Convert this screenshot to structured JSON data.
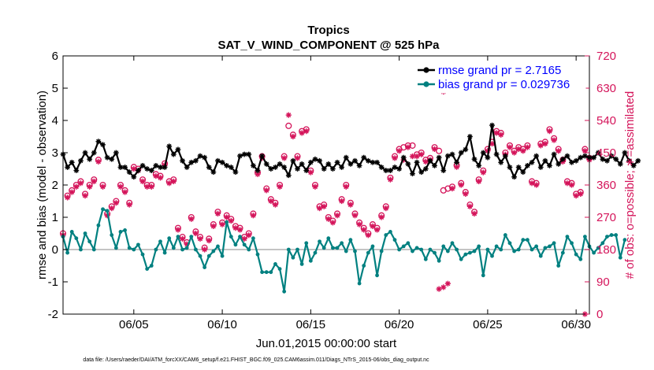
{
  "chart_data": {
    "type": "line",
    "title": "Tropics",
    "subtitle": "SAT_V_WIND_COMPONENT @ 525 hPa",
    "xlabel": "Jun.01,2015 00:00:00 start",
    "ylabel_left": "rmse and bias (model - observation)",
    "ylabel_right": "# of obs: o=possible; ∗=assimilated",
    "footnote": "data file: /Users/raeder/DAI/ATM_forcXX/CAM6_setup/f.e21.FHIST_BGC.f09_025.CAM6assim.011/Diags_NTrS_2015-06/obs_diag_output.nc",
    "xlim": [
      1.0,
      30.75
    ],
    "ylim_left": [
      -2,
      6
    ],
    "ylim_right": [
      0,
      720
    ],
    "x_ticks": [
      5,
      10,
      15,
      20,
      25,
      30
    ],
    "x_tick_labels": [
      "06/05",
      "06/10",
      "06/15",
      "06/20",
      "06/25",
      "06/30"
    ],
    "y_ticks_left": [
      -2,
      -1,
      0,
      1,
      2,
      3,
      4,
      5,
      6
    ],
    "y_ticks_right": [
      0,
      90,
      180,
      270,
      360,
      450,
      540,
      630,
      720
    ],
    "zero_line": true,
    "legend": [
      {
        "label": "rmse grand pr = 2.7165",
        "color": "#000000"
      },
      {
        "label": "bias grand pr = 0.029736",
        "color": "#008080"
      }
    ],
    "colors": {
      "rmse": "#000000",
      "bias": "#008080",
      "obs": "#d4145a",
      "zero_line": "#b0b0b0"
    },
    "x_start": 1.0,
    "x_step": 0.25,
    "series": [
      {
        "name": "rmse",
        "axis": "left",
        "values": [
          2.95,
          2.55,
          2.7,
          2.45,
          2.75,
          3.0,
          2.8,
          3.0,
          3.35,
          3.25,
          2.85,
          2.8,
          3.0,
          2.55,
          2.55,
          2.4,
          2.25,
          2.45,
          2.6,
          2.5,
          2.45,
          2.6,
          2.55,
          2.55,
          3.2,
          2.95,
          3.1,
          2.75,
          2.55,
          2.7,
          2.75,
          2.9,
          2.85,
          2.55,
          2.4,
          2.75,
          2.7,
          2.6,
          2.55,
          2.4,
          2.9,
          2.95,
          2.95,
          2.6,
          2.45,
          2.9,
          2.65,
          2.5,
          2.55,
          2.65,
          2.55,
          2.3,
          2.75,
          2.5,
          2.65,
          2.45,
          2.7,
          2.8,
          2.75,
          2.5,
          2.65,
          2.5,
          2.7,
          2.55,
          2.85,
          2.65,
          2.75,
          2.6,
          2.85,
          2.75,
          2.7,
          2.7,
          2.55,
          2.45,
          2.45,
          2.55,
          2.5,
          2.85,
          2.65,
          2.35,
          2.7,
          2.4,
          2.5,
          2.75,
          2.6,
          2.85,
          2.45,
          2.9,
          2.95,
          2.7,
          3.0,
          3.1,
          3.5,
          2.8,
          2.6,
          3.0,
          2.85,
          3.85,
          2.95,
          2.7,
          2.9,
          2.55,
          2.25,
          2.55,
          2.4,
          2.6,
          2.7,
          2.9,
          2.55,
          2.75,
          2.6,
          2.95,
          2.65,
          2.8,
          2.9,
          2.7,
          2.75,
          2.85,
          2.9,
          2.85,
          2.85,
          3.0,
          2.8,
          2.75,
          2.9,
          2.8,
          2.65,
          3.0,
          2.75,
          2.6,
          2.75
        ]
      },
      {
        "name": "bias",
        "axis": "left",
        "values": [
          0.4,
          -0.1,
          0.55,
          0.35,
          0.0,
          0.5,
          0.25,
          0.0,
          0.75,
          1.25,
          1.2,
          0.45,
          0.05,
          0.55,
          0.6,
          0.05,
          0.0,
          0.15,
          -0.15,
          -0.6,
          -0.5,
          0.0,
          0.25,
          -0.1,
          0.35,
          0.05,
          0.4,
          0.0,
          0.05,
          0.4,
          0.0,
          -0.2,
          -0.55,
          -0.2,
          -0.05,
          0.1,
          -0.2,
          0.85,
          0.4,
          0.15,
          0.4,
          0.15,
          0.0,
          0.35,
          -0.15,
          -0.7,
          -0.7,
          -0.7,
          -0.45,
          -0.6,
          -1.3,
          0.0,
          -0.25,
          0.0,
          -0.45,
          0.2,
          -0.35,
          -0.1,
          0.25,
          0.05,
          0.35,
          0.05,
          0.05,
          0.2,
          -0.05,
          0.3,
          -0.05,
          -1.05,
          -0.5,
          -0.1,
          0.1,
          -0.8,
          -0.05,
          0.45,
          0.55,
          0.3,
          0.0,
          0.1,
          0.2,
          -0.05,
          0.05,
          0.0,
          -0.3,
          0.0,
          -0.1,
          -0.35,
          0.1,
          -0.05,
          0.2,
          0.0,
          -0.3,
          -0.15,
          -0.1,
          -0.05,
          0.1,
          -0.8,
          0.0,
          -0.2,
          0.1,
          0.0,
          0.45,
          0.2,
          -0.05,
          0.0,
          0.3,
          0.3,
          0.0,
          0.1,
          -0.2,
          0.05,
          0.1,
          0.2,
          -0.5,
          -0.1,
          0.4,
          0.2,
          -0.15,
          -0.3,
          0.4,
          0.1,
          -0.1,
          0.05,
          0.2,
          0.4,
          0.45,
          0.45,
          -0.25,
          0.3
        ]
      }
    ],
    "obs_possible": [
      {
        "x": 1.0,
        "y": 225
      },
      {
        "x": 1.25,
        "y": 330
      },
      {
        "x": 1.5,
        "y": 345
      },
      {
        "x": 1.75,
        "y": 360
      },
      {
        "x": 2.0,
        "y": 370
      },
      {
        "x": 2.25,
        "y": 335
      },
      {
        "x": 2.5,
        "y": 360
      },
      {
        "x": 2.75,
        "y": 375
      },
      {
        "x": 3.0,
        "y": 430
      },
      {
        "x": 3.25,
        "y": 360
      },
      {
        "x": 3.5,
        "y": 280
      },
      {
        "x": 3.75,
        "y": 300
      },
      {
        "x": 4.0,
        "y": 315
      },
      {
        "x": 4.25,
        "y": 360
      },
      {
        "x": 4.5,
        "y": 345
      },
      {
        "x": 4.75,
        "y": 310
      },
      {
        "x": 5.0,
        "y": 410
      },
      {
        "x": 5.25,
        "y": 405
      },
      {
        "x": 5.5,
        "y": 375
      },
      {
        "x": 5.75,
        "y": 360
      },
      {
        "x": 6.0,
        "y": 360
      },
      {
        "x": 6.25,
        "y": 390
      },
      {
        "x": 6.5,
        "y": 385
      },
      {
        "x": 6.75,
        "y": 420
      },
      {
        "x": 7.0,
        "y": 370
      },
      {
        "x": 7.25,
        "y": 375
      },
      {
        "x": 7.5,
        "y": 240
      },
      {
        "x": 7.75,
        "y": 215
      },
      {
        "x": 8.0,
        "y": 200
      },
      {
        "x": 8.25,
        "y": 270
      },
      {
        "x": 8.5,
        "y": 230
      },
      {
        "x": 8.75,
        "y": 215
      },
      {
        "x": 9.0,
        "y": 185
      },
      {
        "x": 9.25,
        "y": 210
      },
      {
        "x": 9.5,
        "y": 250
      },
      {
        "x": 9.75,
        "y": 285
      },
      {
        "x": 10.0,
        "y": 255
      },
      {
        "x": 10.25,
        "y": 275
      },
      {
        "x": 10.5,
        "y": 265
      },
      {
        "x": 10.75,
        "y": 245
      },
      {
        "x": 11.0,
        "y": 240
      },
      {
        "x": 11.25,
        "y": 215
      },
      {
        "x": 11.5,
        "y": 225
      },
      {
        "x": 11.75,
        "y": 280
      },
      {
        "x": 12.0,
        "y": 395
      },
      {
        "x": 12.25,
        "y": 440
      },
      {
        "x": 12.5,
        "y": 350
      },
      {
        "x": 12.75,
        "y": 320
      },
      {
        "x": 13.0,
        "y": 310
      },
      {
        "x": 13.25,
        "y": 360
      },
      {
        "x": 13.5,
        "y": 440
      },
      {
        "x": 13.75,
        "y": 525
      },
      {
        "x": 14.0,
        "y": 500
      },
      {
        "x": 14.25,
        "y": 440
      },
      {
        "x": 14.5,
        "y": 510
      },
      {
        "x": 14.75,
        "y": 515
      },
      {
        "x": 15.0,
        "y": 400
      },
      {
        "x": 15.25,
        "y": 360
      },
      {
        "x": 15.5,
        "y": 300
      },
      {
        "x": 15.75,
        "y": 305
      },
      {
        "x": 16.0,
        "y": 270
      },
      {
        "x": 16.25,
        "y": 260
      },
      {
        "x": 16.5,
        "y": 280
      },
      {
        "x": 16.75,
        "y": 320
      },
      {
        "x": 17.0,
        "y": 360
      },
      {
        "x": 17.25,
        "y": 310
      },
      {
        "x": 17.5,
        "y": 280
      },
      {
        "x": 17.75,
        "y": 255
      },
      {
        "x": 18.0,
        "y": 240
      },
      {
        "x": 18.25,
        "y": 225
      },
      {
        "x": 18.5,
        "y": 250
      },
      {
        "x": 18.75,
        "y": 240
      },
      {
        "x": 19.0,
        "y": 275
      },
      {
        "x": 19.25,
        "y": 300
      },
      {
        "x": 19.5,
        "y": 380
      },
      {
        "x": 19.75,
        "y": 440
      },
      {
        "x": 20.0,
        "y": 460
      },
      {
        "x": 20.25,
        "y": 465
      },
      {
        "x": 20.5,
        "y": 470
      },
      {
        "x": 20.75,
        "y": 470
      },
      {
        "x": 21.0,
        "y": 445
      },
      {
        "x": 21.25,
        "y": 450
      },
      {
        "x": 21.5,
        "y": 430
      },
      {
        "x": 21.75,
        "y": 435
      },
      {
        "x": 22.0,
        "y": 465
      },
      {
        "x": 22.25,
        "y": 455
      },
      {
        "x": 22.5,
        "y": 345
      },
      {
        "x": 22.75,
        "y": 350
      },
      {
        "x": 23.0,
        "y": 355
      },
      {
        "x": 23.25,
        "y": 415
      },
      {
        "x": 23.5,
        "y": 365
      },
      {
        "x": 23.75,
        "y": 340
      },
      {
        "x": 24.0,
        "y": 305
      },
      {
        "x": 24.25,
        "y": 285
      },
      {
        "x": 24.5,
        "y": 375
      },
      {
        "x": 24.75,
        "y": 400
      },
      {
        "x": 25.0,
        "y": 460
      },
      {
        "x": 25.25,
        "y": 480
      },
      {
        "x": 25.5,
        "y": 510
      },
      {
        "x": 25.75,
        "y": 505
      },
      {
        "x": 26.0,
        "y": 450
      },
      {
        "x": 26.25,
        "y": 470
      },
      {
        "x": 26.5,
        "y": 455
      },
      {
        "x": 26.75,
        "y": 465
      },
      {
        "x": 27.0,
        "y": 460
      },
      {
        "x": 27.25,
        "y": 470
      },
      {
        "x": 27.5,
        "y": 370
      },
      {
        "x": 27.75,
        "y": 365
      },
      {
        "x": 28.0,
        "y": 475
      },
      {
        "x": 28.25,
        "y": 480
      },
      {
        "x": 28.5,
        "y": 515
      },
      {
        "x": 28.75,
        "y": 490
      },
      {
        "x": 29.0,
        "y": 460
      },
      {
        "x": 29.25,
        "y": 430
      },
      {
        "x": 29.5,
        "y": 370
      },
      {
        "x": 29.75,
        "y": 365
      },
      {
        "x": 30.0,
        "y": 335
      },
      {
        "x": 30.25,
        "y": 340
      },
      {
        "x": 30.5,
        "y": 460
      },
      {
        "x": 30.75,
        "y": 435
      }
    ],
    "obs_assimilated": [
      {
        "x": 1.0,
        "y": 220
      },
      {
        "x": 1.25,
        "y": 325
      },
      {
        "x": 1.5,
        "y": 340
      },
      {
        "x": 1.75,
        "y": 355
      },
      {
        "x": 2.0,
        "y": 365
      },
      {
        "x": 2.25,
        "y": 330
      },
      {
        "x": 2.5,
        "y": 355
      },
      {
        "x": 2.75,
        "y": 370
      },
      {
        "x": 3.0,
        "y": 425
      },
      {
        "x": 3.25,
        "y": 355
      },
      {
        "x": 3.5,
        "y": 275
      },
      {
        "x": 3.75,
        "y": 295
      },
      {
        "x": 4.0,
        "y": 310
      },
      {
        "x": 4.25,
        "y": 355
      },
      {
        "x": 4.5,
        "y": 340
      },
      {
        "x": 4.75,
        "y": 305
      },
      {
        "x": 5.0,
        "y": 405
      },
      {
        "x": 5.25,
        "y": 400
      },
      {
        "x": 5.5,
        "y": 370
      },
      {
        "x": 5.75,
        "y": 355
      },
      {
        "x": 6.0,
        "y": 355
      },
      {
        "x": 6.25,
        "y": 385
      },
      {
        "x": 6.5,
        "y": 380
      },
      {
        "x": 6.75,
        "y": 415
      },
      {
        "x": 7.0,
        "y": 365
      },
      {
        "x": 7.25,
        "y": 370
      },
      {
        "x": 7.5,
        "y": 235
      },
      {
        "x": 7.75,
        "y": 210
      },
      {
        "x": 8.0,
        "y": 195
      },
      {
        "x": 8.25,
        "y": 265
      },
      {
        "x": 8.5,
        "y": 225
      },
      {
        "x": 8.75,
        "y": 210
      },
      {
        "x": 9.0,
        "y": 180
      },
      {
        "x": 9.25,
        "y": 205
      },
      {
        "x": 9.5,
        "y": 245
      },
      {
        "x": 9.75,
        "y": 280
      },
      {
        "x": 10.0,
        "y": 250
      },
      {
        "x": 10.25,
        "y": 270
      },
      {
        "x": 10.5,
        "y": 260
      },
      {
        "x": 10.75,
        "y": 240
      },
      {
        "x": 11.0,
        "y": 235
      },
      {
        "x": 11.25,
        "y": 210
      },
      {
        "x": 11.5,
        "y": 220
      },
      {
        "x": 11.75,
        "y": 275
      },
      {
        "x": 12.0,
        "y": 390
      },
      {
        "x": 12.25,
        "y": 435
      },
      {
        "x": 12.5,
        "y": 345
      },
      {
        "x": 12.75,
        "y": 315
      },
      {
        "x": 13.0,
        "y": 305
      },
      {
        "x": 13.25,
        "y": 355
      },
      {
        "x": 13.5,
        "y": 435
      },
      {
        "x": 13.75,
        "y": 555
      },
      {
        "x": 14.0,
        "y": 495
      },
      {
        "x": 14.25,
        "y": 435
      },
      {
        "x": 14.5,
        "y": 505
      },
      {
        "x": 14.75,
        "y": 510
      },
      {
        "x": 15.0,
        "y": 395
      },
      {
        "x": 15.25,
        "y": 355
      },
      {
        "x": 15.5,
        "y": 295
      },
      {
        "x": 15.75,
        "y": 300
      },
      {
        "x": 16.0,
        "y": 265
      },
      {
        "x": 16.25,
        "y": 255
      },
      {
        "x": 16.5,
        "y": 275
      },
      {
        "x": 16.75,
        "y": 315
      },
      {
        "x": 17.0,
        "y": 355
      },
      {
        "x": 17.25,
        "y": 305
      },
      {
        "x": 17.5,
        "y": 275
      },
      {
        "x": 17.75,
        "y": 250
      },
      {
        "x": 18.0,
        "y": 235
      },
      {
        "x": 18.25,
        "y": 220
      },
      {
        "x": 18.5,
        "y": 245
      },
      {
        "x": 18.75,
        "y": 235
      },
      {
        "x": 19.0,
        "y": 270
      },
      {
        "x": 19.25,
        "y": 295
      },
      {
        "x": 19.5,
        "y": 375
      },
      {
        "x": 19.75,
        "y": 435
      },
      {
        "x": 20.0,
        "y": 455
      },
      {
        "x": 20.25,
        "y": 430
      },
      {
        "x": 20.5,
        "y": 465
      },
      {
        "x": 20.75,
        "y": 440
      },
      {
        "x": 21.0,
        "y": 440
      },
      {
        "x": 21.25,
        "y": 445
      },
      {
        "x": 21.5,
        "y": 425
      },
      {
        "x": 21.75,
        "y": 430
      },
      {
        "x": 22.0,
        "y": 460
      },
      {
        "x": 22.25,
        "y": 70
      },
      {
        "x": 22.5,
        "y": 75
      },
      {
        "x": 22.75,
        "y": 85
      },
      {
        "x": 23.0,
        "y": 350
      },
      {
        "x": 23.25,
        "y": 410
      },
      {
        "x": 23.5,
        "y": 360
      },
      {
        "x": 23.75,
        "y": 335
      },
      {
        "x": 24.0,
        "y": 300
      },
      {
        "x": 24.25,
        "y": 280
      },
      {
        "x": 24.5,
        "y": 370
      },
      {
        "x": 24.75,
        "y": 395
      },
      {
        "x": 25.0,
        "y": 455
      },
      {
        "x": 25.25,
        "y": 475
      },
      {
        "x": 25.5,
        "y": 505
      },
      {
        "x": 25.75,
        "y": 500
      },
      {
        "x": 26.0,
        "y": 445
      },
      {
        "x": 26.25,
        "y": 465
      },
      {
        "x": 26.5,
        "y": 450
      },
      {
        "x": 26.75,
        "y": 460
      },
      {
        "x": 27.0,
        "y": 455
      },
      {
        "x": 27.25,
        "y": 465
      },
      {
        "x": 27.5,
        "y": 365
      },
      {
        "x": 27.75,
        "y": 360
      },
      {
        "x": 28.0,
        "y": 470
      },
      {
        "x": 28.25,
        "y": 475
      },
      {
        "x": 28.5,
        "y": 510
      },
      {
        "x": 28.75,
        "y": 485
      },
      {
        "x": 29.0,
        "y": 455
      },
      {
        "x": 29.25,
        "y": 425
      },
      {
        "x": 29.5,
        "y": 365
      },
      {
        "x": 29.75,
        "y": 360
      },
      {
        "x": 30.0,
        "y": 330
      },
      {
        "x": 30.25,
        "y": 335
      },
      {
        "x": 30.5,
        "y": 455
      },
      {
        "x": 30.75,
        "y": 430
      },
      {
        "x": 22.5,
        "y": 620
      },
      {
        "x": 30.5,
        "y": 0
      }
    ]
  }
}
